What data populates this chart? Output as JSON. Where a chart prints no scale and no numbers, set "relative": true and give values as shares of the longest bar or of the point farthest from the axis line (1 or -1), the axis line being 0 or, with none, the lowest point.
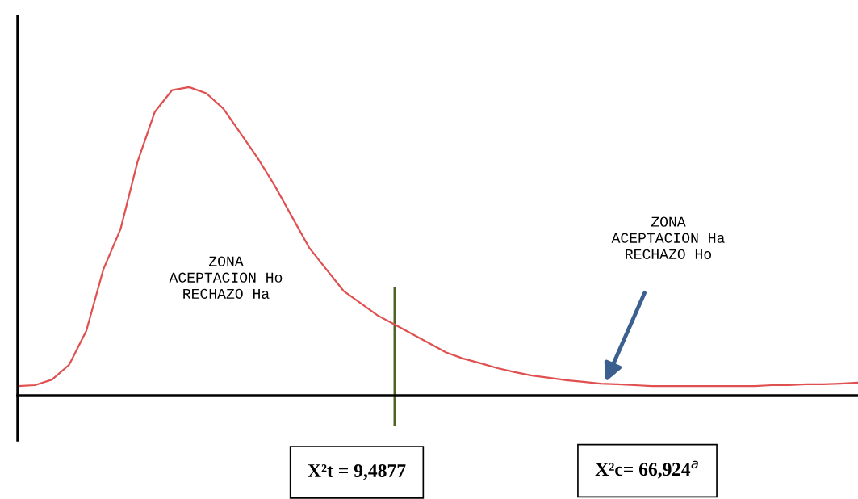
{
  "chart_data": {
    "type": "line",
    "relative": true,
    "grid": false,
    "legend": false,
    "marker": "none",
    "line_style": "solid",
    "categories": [
      null,
      null,
      null,
      null,
      null,
      null,
      null,
      null,
      null,
      null,
      null,
      null,
      null,
      null,
      null,
      null,
      null,
      null,
      null,
      null,
      null,
      null,
      null,
      null,
      null,
      null,
      null,
      null,
      null,
      null,
      null,
      null,
      null,
      null,
      null,
      null,
      null,
      null,
      null,
      null,
      null,
      null,
      null,
      null,
      null,
      null,
      null,
      null,
      null,
      null
    ],
    "series": [
      {
        "color": "#e05050",
        "values": [
          0.031,
          0.034,
          0.052,
          0.1,
          0.21,
          0.41,
          0.54,
          0.76,
          0.92,
          0.99,
          1.0,
          0.98,
          0.93,
          0.85,
          0.77,
          0.68,
          0.58,
          0.48,
          0.41,
          0.34,
          0.3,
          0.26,
          0.23,
          0.2,
          0.17,
          0.14,
          0.12,
          0.105,
          0.089,
          0.076,
          0.065,
          0.058,
          0.05,
          0.045,
          0.039,
          0.037,
          0.034,
          0.031,
          0.031,
          0.031,
          0.031,
          0.031,
          0.031,
          0.031,
          0.034,
          0.034,
          0.037,
          0.037,
          0.039,
          0.042
        ]
      }
    ],
    "annotations": [
      "ZONA\nACEPTACION Ho\nRECHAZO Ha",
      "ZONA\nACEPTACION Ha\nRECHAZO Ho",
      "X²t = 9,4877",
      "X²c= 66,924$^{a}$"
    ]
  }
}
